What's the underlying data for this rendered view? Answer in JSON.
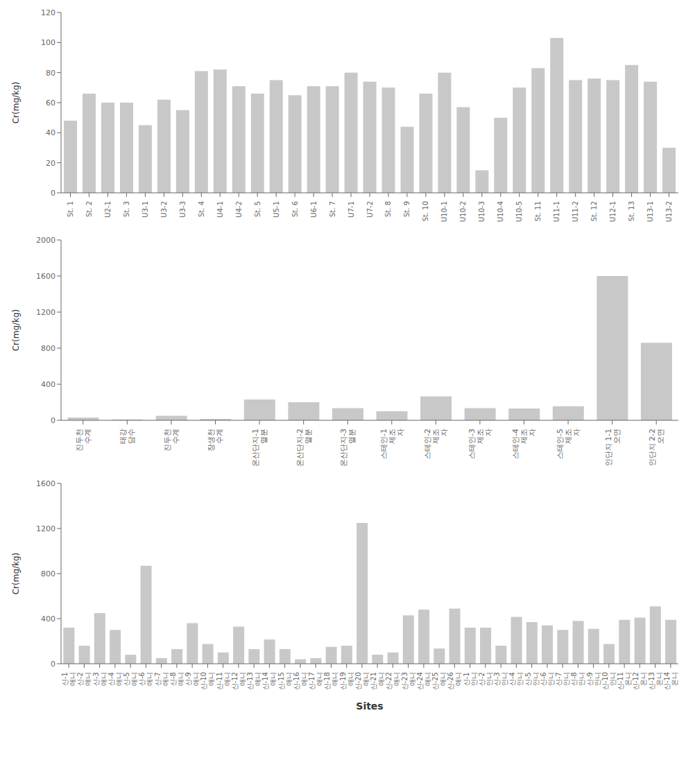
{
  "chart_data": [
    {
      "type": "bar",
      "categories": [
        "St. 1",
        "St. 2",
        "U2-1",
        "St. 3",
        "U3-1",
        "U3-2",
        "U3-3",
        "St. 4",
        "U4-1",
        "U4-2",
        "St. 5",
        "U5-1",
        "St. 6",
        "U6-1",
        "St. 7",
        "U7-1",
        "U7-2",
        "St. 8",
        "St. 9",
        "St. 10",
        "U10-1",
        "U10-2",
        "U10-3",
        "U10-4",
        "U10-5",
        "St. 11",
        "U11-1",
        "U11-2",
        "St. 12",
        "U12-1",
        "St. 13",
        "U13-1",
        "U13-2"
      ],
      "values": [
        48,
        66,
        60,
        60,
        45,
        62,
        55,
        81,
        82,
        71,
        66,
        75,
        65,
        71,
        71,
        80,
        74,
        70,
        44,
        66,
        80,
        57,
        15,
        50,
        70,
        83,
        103,
        75,
        76,
        75,
        85,
        74,
        30
      ],
      "color": "#c8c8c8",
      "ylabel": "Cr(mg/kg)",
      "ylim": [
        0,
        120
      ],
      "yticks": [
        0,
        20,
        40,
        60,
        80,
        100,
        120
      ],
      "grid": false
    },
    {
      "type": "bar",
      "categories": [
        "진두천\n수계",
        "태강\n담수",
        "진두천\n수계",
        "장생천\n수계",
        "온산단지-1\n열분",
        "온산단지-2\n열분",
        "온산단지-3\n열분",
        "스테인-1\n제조\n자",
        "스테인-2\n제조\n자",
        "스테인-3\n제조\n자",
        "스테인-4\n제조\n자",
        "스테인-5\n제조\n자",
        "인단지 1-1\n오연",
        "인단지 2-2\n오연"
      ],
      "values": [
        30,
        10,
        50,
        15,
        230,
        200,
        135,
        100,
        265,
        135,
        130,
        155,
        1600,
        860
      ],
      "color": "#c8c8c8",
      "ylabel": "Cr(mg/kg)",
      "ylim": [
        0,
        2000
      ],
      "yticks": [
        0,
        400,
        800,
        1200,
        1600,
        2000
      ],
      "grid": false
    },
    {
      "type": "bar",
      "categories": [
        "신-1\n애니",
        "신-2\n애니",
        "신-3\n애니",
        "신-4\n애니",
        "신-5\n애니",
        "신-6\n애니",
        "신-7\n애니",
        "신-8\n애니",
        "신-9\n애니",
        "신-10\n애니",
        "신-11\n애니",
        "신-12\n애니",
        "신-13\n애니",
        "신-14\n애니",
        "신-15\n애니",
        "신-16\n애니",
        "신-17\n애니",
        "신-18\n애니",
        "신-19\n애니",
        "신-20\n애니",
        "신-21\n애니",
        "신-22\n애니",
        "신-23\n애니",
        "신-24\n애니",
        "신-25\n애니",
        "신-26\n애니",
        "신-1\n인니",
        "신-2\n인니",
        "신-3\n인니",
        "신-4\n인니",
        "신-5\n인니",
        "신-6\n인니",
        "신-7\n인니",
        "신-8\n인니",
        "신-9\n인니",
        "신-10\n인니",
        "신-11\n온니",
        "신-12\n온니",
        "신-13\n온니",
        "신-14\n온니"
      ],
      "values": [
        320,
        160,
        450,
        300,
        80,
        870,
        50,
        130,
        360,
        175,
        100,
        330,
        130,
        215,
        130,
        40,
        50,
        150,
        160,
        1250,
        80,
        100,
        430,
        480,
        135,
        490,
        320,
        320,
        160,
        415,
        370,
        340,
        300,
        380,
        310,
        175,
        390,
        410,
        510,
        390
      ],
      "color": "#c8c8c8",
      "ylabel": "Cr(mg/kg)",
      "xlabel": "Sites",
      "ylim": [
        0,
        1600
      ],
      "yticks": [
        0,
        400,
        800,
        1200,
        1600
      ],
      "grid": false
    }
  ]
}
